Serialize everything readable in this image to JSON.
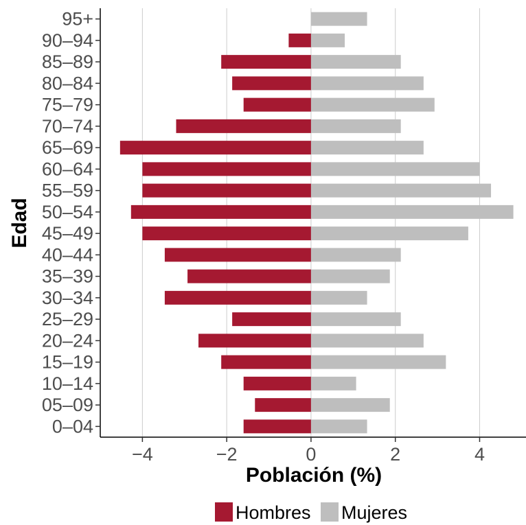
{
  "chart_data": {
    "type": "bar",
    "orientation": "horizontal",
    "layout": "population-pyramid",
    "xlabel": "Población (%)",
    "ylabel": "Edad",
    "xlim": [
      -5,
      5.1
    ],
    "xticks": [
      -4,
      -2,
      0,
      2,
      4
    ],
    "xtick_labels": [
      "−4",
      "−2",
      "0",
      "2",
      "4"
    ],
    "grid": "vertical major",
    "legend_position": "bottom",
    "categories": [
      "0–04",
      "05–09",
      "10–14",
      "15–19",
      "20–24",
      "25–29",
      "30–34",
      "35–39",
      "40–44",
      "45–49",
      "50–54",
      "55–59",
      "60–64",
      "65–69",
      "70–74",
      "75–79",
      "80–84",
      "85–89",
      "90–94",
      "95+"
    ],
    "series": [
      {
        "name": "Hombres",
        "color": "#a51931",
        "values": [
          -1.6,
          -1.33,
          -1.6,
          -2.13,
          -2.67,
          -1.87,
          -3.47,
          -2.93,
          -3.47,
          -4.0,
          -4.27,
          -4.0,
          -4.0,
          -4.53,
          -3.2,
          -1.6,
          -1.87,
          -2.13,
          -0.53,
          0
        ]
      },
      {
        "name": "Mujeres",
        "color": "#bebebe",
        "values": [
          1.33,
          1.87,
          1.07,
          3.2,
          2.67,
          2.13,
          1.33,
          1.87,
          2.13,
          3.73,
          4.8,
          4.27,
          4.0,
          2.67,
          2.13,
          2.93,
          2.67,
          2.13,
          0.8,
          1.33
        ]
      }
    ]
  }
}
